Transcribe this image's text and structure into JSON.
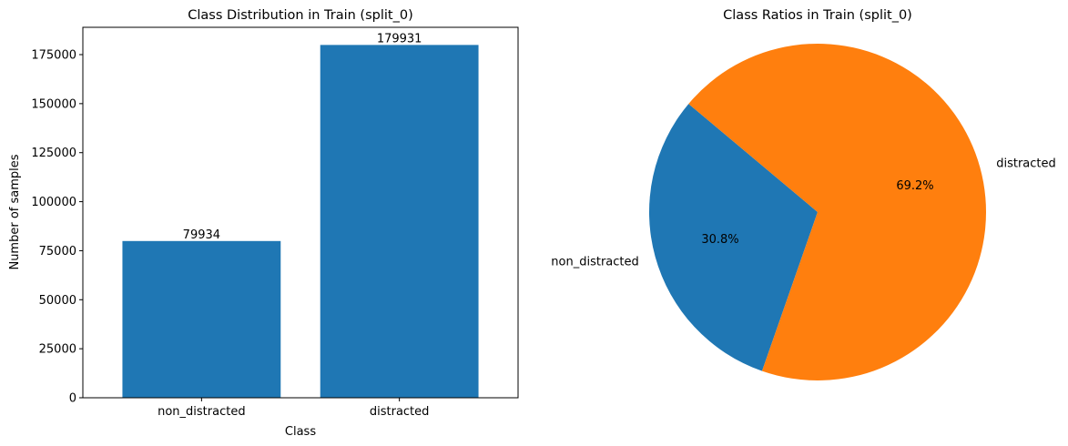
{
  "chart_data": [
    {
      "type": "bar",
      "title": "Class Distribution in Train (split_0)",
      "xlabel": "Class",
      "ylabel": "Number of samples",
      "categories": [
        "non_distracted",
        "distracted"
      ],
      "values": [
        79934,
        179931
      ],
      "value_labels": [
        "79934",
        "179931"
      ],
      "ylim": [
        0,
        188928
      ],
      "yticks": [
        0,
        25000,
        50000,
        75000,
        100000,
        125000,
        150000,
        175000
      ],
      "ytick_labels": [
        "0",
        "25000",
        "50000",
        "75000",
        "100000",
        "125000",
        "150000",
        "175000"
      ],
      "grid": false,
      "color": "#1f77b4"
    },
    {
      "type": "pie",
      "title": "Class Ratios in Train (split_0)",
      "labels": [
        "non_distracted",
        "distracted"
      ],
      "values": [
        79934,
        179931
      ],
      "percent_labels": [
        "30.8%",
        "69.2%"
      ],
      "colors": [
        "#1f77b4",
        "#ff7f0e"
      ],
      "start_angle_deg": 140
    }
  ]
}
